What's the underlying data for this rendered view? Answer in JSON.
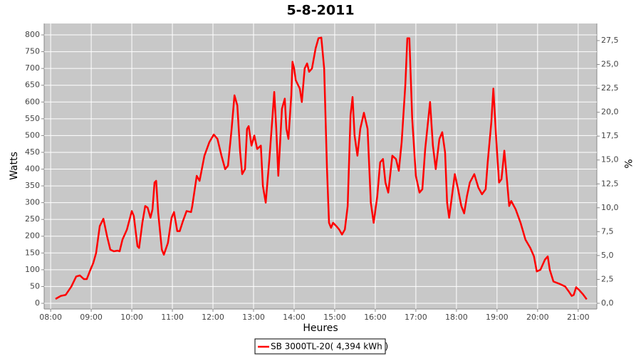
{
  "chart_data": {
    "type": "line",
    "title": "5-8-2011",
    "xlabel": "Heures",
    "ylabel": "Watts",
    "y2label": "%",
    "grid": true,
    "legend": "bottom",
    "x": [
      8.12,
      8.25,
      8.37,
      8.51,
      8.63,
      8.72,
      8.82,
      8.89,
      8.98,
      9.05,
      9.12,
      9.21,
      9.3,
      9.39,
      9.47,
      9.56,
      9.65,
      9.7,
      9.77,
      9.88,
      10.0,
      10.05,
      10.14,
      10.18,
      10.26,
      10.33,
      10.39,
      10.46,
      10.51,
      10.56,
      10.6,
      10.65,
      10.74,
      10.79,
      10.89,
      10.98,
      11.04,
      11.12,
      11.18,
      11.26,
      11.35,
      11.46,
      11.49,
      11.6,
      11.67,
      11.79,
      11.91,
      12.02,
      12.11,
      12.21,
      12.3,
      12.37,
      12.46,
      12.53,
      12.6,
      12.67,
      12.72,
      12.79,
      12.84,
      12.88,
      12.95,
      13.02,
      13.09,
      13.18,
      13.23,
      13.3,
      13.39,
      13.46,
      13.51,
      13.56,
      13.61,
      13.7,
      13.77,
      13.81,
      13.86,
      13.93,
      13.96,
      14.0,
      14.04,
      14.14,
      14.19,
      14.26,
      14.32,
      14.37,
      14.44,
      14.53,
      14.6,
      14.67,
      14.74,
      14.81,
      14.86,
      14.91,
      14.96,
      15.04,
      15.11,
      15.18,
      15.25,
      15.32,
      15.39,
      15.44,
      15.49,
      15.56,
      15.63,
      15.72,
      15.81,
      15.89,
      15.96,
      16.05,
      16.12,
      16.19,
      16.25,
      16.32,
      16.42,
      16.51,
      16.58,
      16.65,
      16.74,
      16.79,
      16.84,
      16.91,
      17.0,
      17.09,
      17.16,
      17.23,
      17.35,
      17.42,
      17.49,
      17.58,
      17.65,
      17.72,
      17.77,
      17.82,
      17.89,
      17.96,
      18.04,
      18.12,
      18.19,
      18.26,
      18.33,
      18.44,
      18.54,
      18.63,
      18.72,
      18.77,
      18.86,
      18.91,
      18.98,
      19.05,
      19.11,
      19.18,
      19.25,
      19.3,
      19.35,
      19.46,
      19.58,
      19.7,
      19.82,
      19.91,
      19.98,
      20.07,
      20.18,
      20.25,
      20.3,
      20.39,
      20.54,
      20.68,
      20.77,
      20.84,
      20.89,
      20.95,
      21.02,
      21.11,
      21.21
    ],
    "series": [
      {
        "name": "SB 3000TL-20( 4,394 kWh )",
        "color": "#ff0000",
        "values": [
          13,
          22,
          25,
          50,
          80,
          83,
          72,
          72,
          100,
          120,
          150,
          230,
          252,
          200,
          160,
          155,
          157,
          155,
          190,
          220,
          275,
          260,
          170,
          165,
          240,
          290,
          285,
          255,
          280,
          360,
          365,
          270,
          160,
          145,
          180,
          255,
          272,
          215,
          215,
          245,
          275,
          272,
          290,
          380,
          365,
          440,
          480,
          503,
          490,
          440,
          400,
          410,
          520,
          620,
          590,
          450,
          385,
          400,
          520,
          528,
          470,
          500,
          460,
          470,
          350,
          300,
          430,
          545,
          630,
          520,
          380,
          580,
          610,
          520,
          490,
          620,
          720,
          700,
          665,
          640,
          600,
          700,
          715,
          690,
          700,
          760,
          790,
          792,
          700,
          400,
          240,
          225,
          240,
          230,
          220,
          205,
          220,
          290,
          560,
          615,
          500,
          440,
          520,
          568,
          520,
          300,
          240,
          320,
          420,
          430,
          360,
          330,
          440,
          430,
          395,
          480,
          650,
          790,
          790,
          550,
          380,
          330,
          340,
          460,
          600,
          470,
          400,
          490,
          510,
          450,
          300,
          255,
          320,
          385,
          340,
          290,
          268,
          320,
          360,
          385,
          345,
          325,
          340,
          420,
          540,
          640,
          490,
          360,
          370,
          455,
          360,
          290,
          305,
          280,
          240,
          190,
          165,
          140,
          95,
          100,
          130,
          140,
          100,
          65,
          58,
          50,
          35,
          22,
          25,
          48,
          40,
          28,
          12
        ]
      }
    ],
    "xlim": [
      7.84,
      21.46
    ],
    "xticks": [
      {
        "value": 8,
        "label": "08:00"
      },
      {
        "value": 9,
        "label": "09:00"
      },
      {
        "value": 10,
        "label": "10:00"
      },
      {
        "value": 11,
        "label": "11:00"
      },
      {
        "value": 12,
        "label": "12:00"
      },
      {
        "value": 13,
        "label": "13:00"
      },
      {
        "value": 14,
        "label": "14:00"
      },
      {
        "value": 15,
        "label": "15:00"
      },
      {
        "value": 16,
        "label": "16:00"
      },
      {
        "value": 17,
        "label": "17:00"
      },
      {
        "value": 18,
        "label": "18:00"
      },
      {
        "value": 19,
        "label": "19:00"
      },
      {
        "value": 20,
        "label": "20:00"
      },
      {
        "value": 21,
        "label": "21:00"
      }
    ],
    "ylim": [
      -17,
      834
    ],
    "yticks": [
      0,
      50,
      100,
      150,
      200,
      250,
      300,
      350,
      400,
      450,
      500,
      550,
      600,
      650,
      700,
      750,
      800
    ],
    "y2lim": [
      -0.6,
      29.29
    ],
    "y2ticks": [
      {
        "value": 0,
        "label": "0,0"
      },
      {
        "value": 2.5,
        "label": "2,5"
      },
      {
        "value": 5,
        "label": "5,0"
      },
      {
        "value": 7.5,
        "label": "7,5"
      },
      {
        "value": 10,
        "label": "10,0"
      },
      {
        "value": 12.5,
        "label": "12,5"
      },
      {
        "value": 15,
        "label": "15,0"
      },
      {
        "value": 17.5,
        "label": "17,5"
      },
      {
        "value": 20,
        "label": "20,0"
      },
      {
        "value": 22.5,
        "label": "22,5"
      },
      {
        "value": 25,
        "label": "25,0"
      },
      {
        "value": 27.5,
        "label": "27,5"
      }
    ]
  }
}
